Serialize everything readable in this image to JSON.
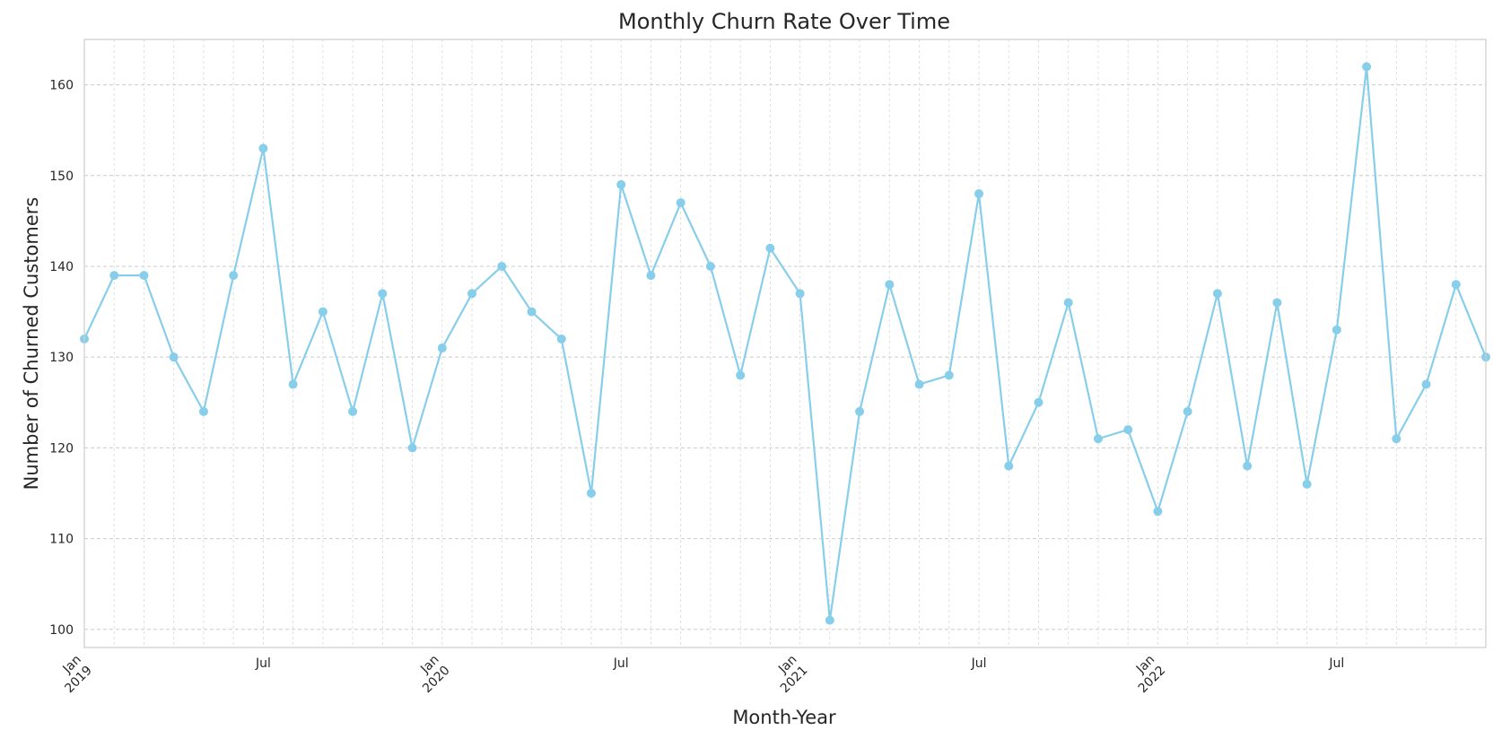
{
  "chart_data": {
    "type": "line",
    "title": "Monthly Churn Rate Over Time",
    "xlabel": "Month-Year",
    "ylabel": "Number of Churned Customers",
    "x": [
      "2019-01",
      "2019-02",
      "2019-03",
      "2019-04",
      "2019-05",
      "2019-06",
      "2019-07",
      "2019-08",
      "2019-09",
      "2019-10",
      "2019-11",
      "2019-12",
      "2020-01",
      "2020-02",
      "2020-03",
      "2020-04",
      "2020-05",
      "2020-06",
      "2020-07",
      "2020-08",
      "2020-09",
      "2020-10",
      "2020-11",
      "2020-12",
      "2021-01",
      "2021-02",
      "2021-03",
      "2021-04",
      "2021-05",
      "2021-06",
      "2021-07",
      "2021-08",
      "2021-09",
      "2021-10",
      "2021-11",
      "2021-12",
      "2022-01",
      "2022-02",
      "2022-03",
      "2022-04",
      "2022-05",
      "2022-06",
      "2022-07",
      "2022-08",
      "2022-09",
      "2022-10",
      "2022-11",
      "2022-12"
    ],
    "series": [
      {
        "values": [
          132,
          139,
          139,
          130,
          124,
          139,
          153,
          127,
          135,
          124,
          137,
          120,
          131,
          137,
          140,
          135,
          132,
          115,
          149,
          139,
          147,
          140,
          128,
          142,
          137,
          101,
          124,
          138,
          127,
          128,
          148,
          118,
          125,
          136,
          121,
          122,
          113,
          124,
          137,
          118,
          136,
          116,
          133,
          162,
          121,
          127,
          138,
          130
        ],
        "color": "#87ceeb"
      }
    ],
    "ylim": [
      98,
      165
    ],
    "yticks": [
      100,
      110,
      120,
      130,
      140,
      150,
      160
    ],
    "xticks": [
      {
        "x": "2019-01",
        "label": "Jan",
        "year": "2019"
      },
      {
        "x": "2019-07",
        "label": "Jul",
        "year": ""
      },
      {
        "x": "2020-01",
        "label": "Jan",
        "year": "2020"
      },
      {
        "x": "2020-07",
        "label": "Jul",
        "year": ""
      },
      {
        "x": "2021-01",
        "label": "Jan",
        "year": "2021"
      },
      {
        "x": "2021-07",
        "label": "Jul",
        "year": ""
      },
      {
        "x": "2022-01",
        "label": "Jan",
        "year": "2022"
      },
      {
        "x": "2022-07",
        "label": "Jul",
        "year": ""
      }
    ],
    "grid": true,
    "legend": "none"
  }
}
